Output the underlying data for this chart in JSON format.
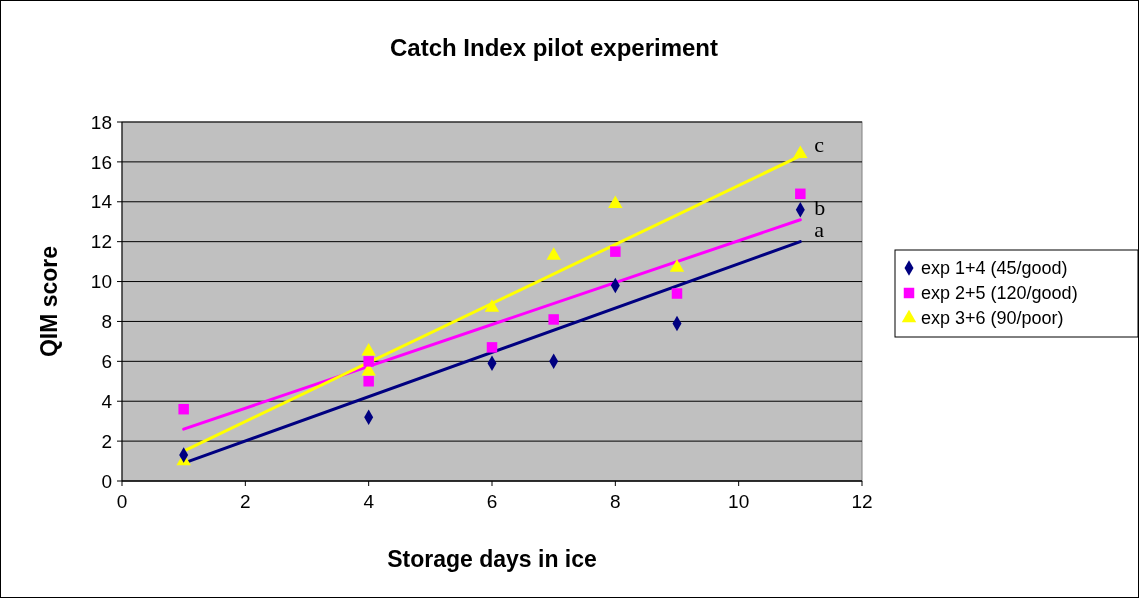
{
  "chart_data": {
    "type": "scatter",
    "title": "Catch Index pilot experiment",
    "xlabel": "Storage days in ice",
    "ylabel": "QIM score",
    "xlim": [
      0,
      12
    ],
    "xticks": [
      0,
      2,
      4,
      6,
      8,
      10,
      12
    ],
    "ylim": [
      0,
      18
    ],
    "yticks": [
      0,
      2,
      4,
      6,
      8,
      10,
      12,
      14,
      16,
      18
    ],
    "grid": "y",
    "legend": "right",
    "series": [
      {
        "name": "exp 1+4 (45/good)",
        "color": "#000080",
        "marker": "diamond",
        "x": [
          1,
          4,
          6,
          7,
          8,
          9,
          11
        ],
        "values": [
          1.3,
          3.2,
          5.9,
          6.0,
          9.8,
          7.9,
          13.6
        ]
      },
      {
        "name": "exp 2+5 (120/good)",
        "color": "#ff00ff",
        "marker": "square",
        "x": [
          1,
          4,
          4,
          6,
          7,
          8,
          9,
          11
        ],
        "values": [
          3.6,
          5.0,
          6.0,
          6.7,
          8.1,
          11.5,
          9.4,
          14.4
        ]
      },
      {
        "name": "exp 3+6 (90/poor)",
        "color": "#ffff00",
        "marker": "triangle",
        "x": [
          1,
          4,
          4,
          6,
          7,
          8,
          9,
          11
        ],
        "values": [
          1.0,
          6.5,
          5.5,
          8.7,
          11.3,
          13.9,
          10.7,
          16.4
        ]
      },
      {
        "type": "line",
        "color": "#000080",
        "marker": "none",
        "x": [
          1,
          11
        ],
        "values": [
          0.9,
          12.0
        ]
      },
      {
        "type": "line",
        "color": "#ff00ff",
        "marker": "none",
        "x": [
          1,
          11
        ],
        "values": [
          2.6,
          13.1
        ]
      },
      {
        "type": "line",
        "color": "#ffff00",
        "marker": "none",
        "x": [
          1,
          11
        ],
        "values": [
          1.5,
          16.3
        ]
      }
    ],
    "annotations": [
      "a",
      "b",
      "c"
    ]
  }
}
